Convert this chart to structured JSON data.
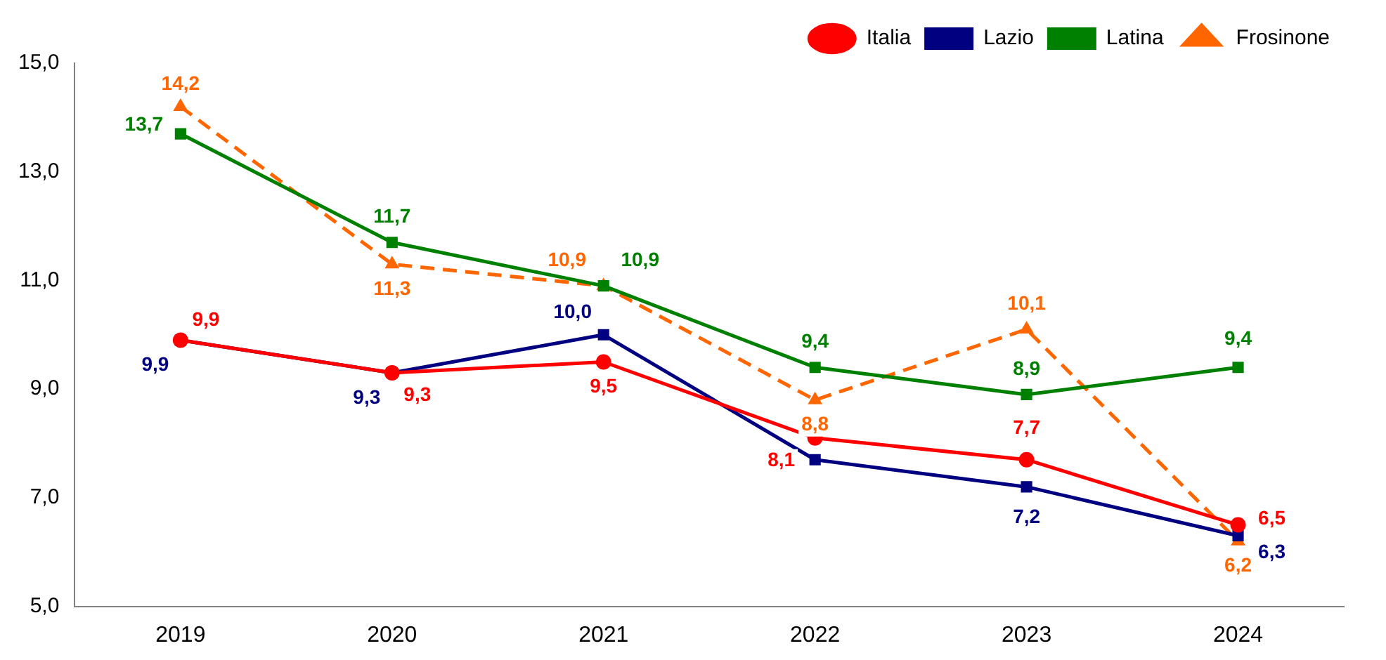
{
  "chart_data": {
    "type": "line",
    "categories": [
      "2019",
      "2020",
      "2021",
      "2022",
      "2023",
      "2024"
    ],
    "series": [
      {
        "name": "Italia",
        "color": "#ff0000",
        "marker": "circle",
        "line_style": "solid",
        "values": [
          9.9,
          9.3,
          9.5,
          8.1,
          7.7,
          6.5
        ],
        "value_labels": [
          "9,9",
          "9,3",
          "9,5",
          "8,1",
          "7,7",
          "6,5"
        ]
      },
      {
        "name": "Lazio",
        "color": "#000080",
        "marker": "square",
        "line_style": "solid",
        "values": [
          9.9,
          9.3,
          10.0,
          7.7,
          7.2,
          6.3
        ],
        "value_labels": [
          "9,9",
          "9,3",
          "10,0",
          null,
          "7,2",
          "6,3"
        ]
      },
      {
        "name": "Latina",
        "color": "#008000",
        "marker": "square",
        "line_style": "solid",
        "values": [
          13.7,
          11.7,
          10.9,
          9.4,
          8.9,
          9.4
        ],
        "value_labels": [
          "13,7",
          "11,7",
          "10,9",
          "9,4",
          "8,9",
          "9,4"
        ]
      },
      {
        "name": "Frosinone",
        "color": "#ff6600",
        "marker": "triangle",
        "line_style": "dashed",
        "values": [
          14.2,
          11.3,
          10.9,
          8.8,
          10.1,
          6.2
        ],
        "value_labels": [
          "14,2",
          "11,3",
          "10,9",
          "8,8",
          "10,1",
          "6,2"
        ]
      }
    ],
    "ylim": [
      5,
      15
    ],
    "yticks": [
      {
        "value": 5,
        "label": "5,0"
      },
      {
        "value": 7,
        "label": "7,0"
      },
      {
        "value": 9,
        "label": "9,0"
      },
      {
        "value": 11,
        "label": "11,0"
      },
      {
        "value": 13,
        "label": "13,0"
      },
      {
        "value": 15,
        "label": "15,0"
      }
    ],
    "grid": false,
    "legend": "top right"
  }
}
